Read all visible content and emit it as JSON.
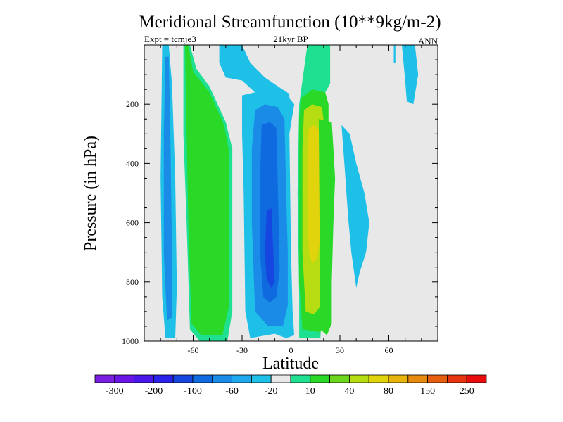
{
  "chart_data": {
    "type": "heatmap",
    "title": "Meridional Streamfunction (10**9kg/m-2)",
    "subtitle_left": "Expt = tcmje3",
    "subtitle_center": "21kyr BP",
    "subtitle_right": "ANN",
    "xlabel": "Latitude",
    "ylabel": "Pressure (in hPa)",
    "xlim": [
      -90,
      90
    ],
    "ylim": [
      1000,
      0
    ],
    "x_ticks": [
      {
        "value": -60,
        "label": "-60"
      },
      {
        "value": -30,
        "label": "-30"
      },
      {
        "value": 0,
        "label": "0"
      },
      {
        "value": 30,
        "label": "30"
      },
      {
        "value": 60,
        "label": "60"
      }
    ],
    "y_ticks": [
      {
        "value": 200,
        "label": "200"
      },
      {
        "value": 400,
        "label": "400"
      },
      {
        "value": 600,
        "label": "600"
      },
      {
        "value": 800,
        "label": "800"
      },
      {
        "value": 1000,
        "label": "1000"
      }
    ],
    "background_color": "#e8e8e8",
    "colorbar": {
      "colors": [
        "#7a1fe0",
        "#6a14e6",
        "#4a16ea",
        "#2a22e8",
        "#1546e0",
        "#0f6ae0",
        "#1a8be6",
        "#20a8ec",
        "#1ec0e8",
        "#e8e8e8",
        "#1fe090",
        "#2ad828",
        "#6cd61e",
        "#b6dc12",
        "#e2d40c",
        "#e6b40c",
        "#e68a10",
        "#e65e10",
        "#e63410",
        "#e80c0c"
      ],
      "labels": [
        "-300",
        "-200",
        "-100",
        "-60",
        "-20",
        "10",
        "40",
        "80",
        "150",
        "250"
      ]
    },
    "regions": [
      {
        "name": "cell-sh-far-outer",
        "level": -20,
        "points": [
          [
            -79,
            0
          ],
          [
            -75,
            0
          ],
          [
            -73,
            130
          ],
          [
            -71,
            450
          ],
          [
            -70,
            820
          ],
          [
            -71,
            990
          ],
          [
            -77,
            990
          ],
          [
            -79,
            850
          ],
          [
            -80,
            450
          ]
        ]
      },
      {
        "name": "cell-sh-far-inner",
        "level": -60,
        "points": [
          [
            -77,
            40
          ],
          [
            -75,
            40
          ],
          [
            -74,
            300
          ],
          [
            -73,
            700
          ],
          [
            -73,
            920
          ],
          [
            -76,
            930
          ],
          [
            -78,
            700
          ],
          [
            -78,
            300
          ]
        ]
      },
      {
        "name": "cell-sh-mid-outer",
        "level": 10,
        "points": [
          [
            -66,
            0
          ],
          [
            -62,
            0
          ],
          [
            -58,
            80
          ],
          [
            -50,
            140
          ],
          [
            -40,
            260
          ],
          [
            -36,
            350
          ],
          [
            -36,
            900
          ],
          [
            -39,
            1000
          ],
          [
            -56,
            1000
          ],
          [
            -62,
            960
          ],
          [
            -64,
            600
          ],
          [
            -66,
            300
          ]
        ]
      },
      {
        "name": "cell-sh-mid-inner",
        "level": 40,
        "points": [
          [
            -65,
            0
          ],
          [
            -63,
            0
          ],
          [
            -60,
            90
          ],
          [
            -50,
            160
          ],
          [
            -41,
            270
          ],
          [
            -38,
            360
          ],
          [
            -38,
            880
          ],
          [
            -42,
            980
          ],
          [
            -55,
            980
          ],
          [
            -61,
            940
          ],
          [
            -63,
            600
          ],
          [
            -64,
            300
          ]
        ]
      },
      {
        "name": "cell-tropic-outer-top",
        "level": -20,
        "points": [
          [
            -44,
            0
          ],
          [
            -30,
            0
          ],
          [
            -25,
            60
          ],
          [
            -16,
            110
          ],
          [
            -8,
            140
          ],
          [
            -1,
            165
          ],
          [
            -1,
            200
          ],
          [
            -10,
            190
          ],
          [
            -22,
            160
          ],
          [
            -30,
            120
          ],
          [
            -40,
            110
          ],
          [
            -44,
            60
          ]
        ]
      },
      {
        "name": "cell-tropic-south-outer",
        "level": -20,
        "points": [
          [
            -30,
            170
          ],
          [
            -15,
            150
          ],
          [
            -1,
            180
          ],
          [
            2,
            200
          ],
          [
            -1,
            300
          ],
          [
            0,
            700
          ],
          [
            1,
            900
          ],
          [
            2,
            980
          ],
          [
            -3,
            990
          ],
          [
            -10,
            975
          ],
          [
            -25,
            990
          ],
          [
            -28,
            900
          ],
          [
            -29,
            500
          ],
          [
            -30,
            300
          ]
        ]
      },
      {
        "name": "cell-tropic-south-mid",
        "level": -60,
        "points": [
          [
            -22,
            220
          ],
          [
            -16,
            200
          ],
          [
            -8,
            210
          ],
          [
            -4,
            250
          ],
          [
            -3,
            500
          ],
          [
            -2,
            700
          ],
          [
            -2,
            880
          ],
          [
            -5,
            950
          ],
          [
            -14,
            950
          ],
          [
            -22,
            900
          ],
          [
            -24,
            600
          ],
          [
            -24,
            350
          ]
        ]
      },
      {
        "name": "cell-tropic-south-core",
        "level": -100,
        "points": [
          [
            -18,
            270
          ],
          [
            -13,
            260
          ],
          [
            -9,
            280
          ],
          [
            -8,
            500
          ],
          [
            -7,
            760
          ],
          [
            -9,
            850
          ],
          [
            -13,
            870
          ],
          [
            -17,
            850
          ],
          [
            -19,
            700
          ],
          [
            -19,
            450
          ]
        ]
      },
      {
        "name": "cell-tropic-south-center",
        "level": -200,
        "points": [
          [
            -15,
            560
          ],
          [
            -12,
            550
          ],
          [
            -11,
            680
          ],
          [
            -10,
            800
          ],
          [
            -12,
            820
          ],
          [
            -15,
            790
          ],
          [
            -16,
            700
          ]
        ]
      },
      {
        "name": "cell-tropic-north-band",
        "level": 10,
        "points": [
          [
            10,
            0
          ],
          [
            24,
            0
          ],
          [
            24,
            130
          ],
          [
            19,
            180
          ],
          [
            19,
            320
          ],
          [
            19,
            900
          ],
          [
            18,
            990
          ],
          [
            5,
            990
          ],
          [
            5,
            850
          ],
          [
            4,
            500
          ],
          [
            5,
            200
          ]
        ]
      },
      {
        "name": "cell-tropic-north-upper",
        "level": 40,
        "points": [
          [
            6,
            180
          ],
          [
            13,
            150
          ],
          [
            21,
            160
          ],
          [
            23,
            200
          ],
          [
            23,
            320
          ],
          [
            23,
            700
          ],
          [
            21,
            920
          ],
          [
            18,
            970
          ],
          [
            7,
            960
          ],
          [
            5,
            800
          ],
          [
            5,
            500
          ],
          [
            5,
            250
          ]
        ]
      },
      {
        "name": "cell-tropic-north-mid",
        "level": 80,
        "points": [
          [
            8,
            220
          ],
          [
            13,
            200
          ],
          [
            19,
            210
          ],
          [
            21,
            300
          ],
          [
            21,
            700
          ],
          [
            20,
            860
          ],
          [
            17,
            890
          ],
          [
            14,
            910
          ],
          [
            9,
            900
          ],
          [
            7,
            700
          ],
          [
            7,
            350
          ]
        ]
      },
      {
        "name": "cell-tropic-north-core",
        "level": 150,
        "points": [
          [
            11,
            280
          ],
          [
            14,
            270
          ],
          [
            18,
            290
          ],
          [
            19,
            450
          ],
          [
            18,
            650
          ],
          [
            16,
            720
          ],
          [
            13,
            740
          ],
          [
            11,
            700
          ],
          [
            10,
            550
          ],
          [
            10,
            350
          ]
        ]
      },
      {
        "name": "cell-tropic-north-right",
        "level": 40,
        "points": [
          [
            17,
            250
          ],
          [
            25,
            260
          ],
          [
            26,
            350
          ],
          [
            27,
            450
          ],
          [
            26,
            600
          ],
          [
            25,
            800
          ],
          [
            25,
            940
          ],
          [
            22,
            980
          ],
          [
            18,
            960
          ]
        ]
      },
      {
        "name": "cell-nh-mid-patch",
        "level": -20,
        "points": [
          [
            31,
            270
          ],
          [
            36,
            300
          ],
          [
            40,
            400
          ],
          [
            45,
            500
          ],
          [
            48,
            600
          ],
          [
            46,
            700
          ],
          [
            42,
            770
          ],
          [
            40,
            820
          ],
          [
            37,
            700
          ],
          [
            35,
            580
          ],
          [
            33,
            420
          ]
        ]
      },
      {
        "name": "cell-nh-high-patch",
        "level": -20,
        "points": [
          [
            68,
            0
          ],
          [
            76,
            0
          ],
          [
            78,
            100
          ],
          [
            75,
            200
          ],
          [
            71,
            190
          ],
          [
            70,
            120
          ]
        ]
      },
      {
        "name": "cell-nh-high-spike",
        "level": -20,
        "points": [
          [
            63,
            0
          ],
          [
            64,
            0
          ],
          [
            64,
            60
          ],
          [
            63,
            60
          ]
        ]
      }
    ]
  }
}
